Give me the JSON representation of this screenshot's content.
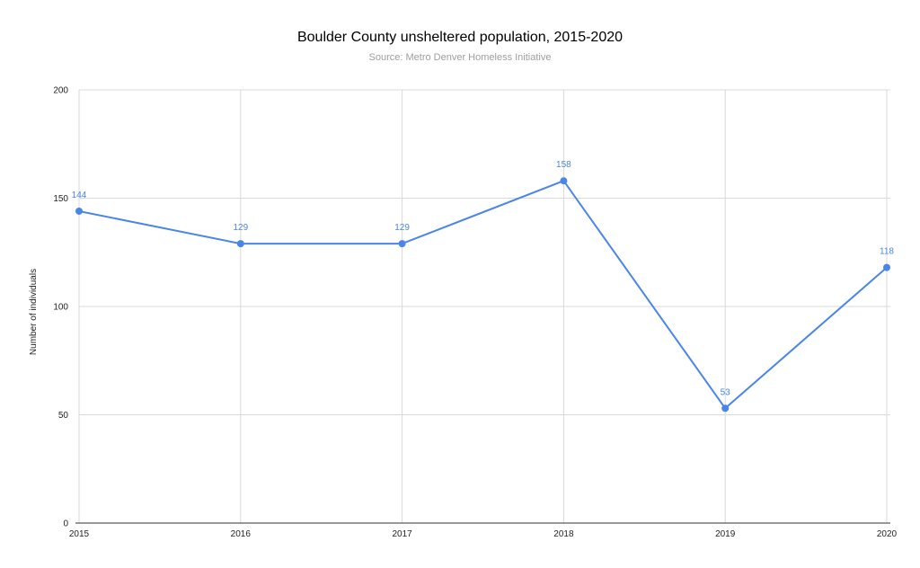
{
  "chart_data": {
    "type": "line",
    "title": "Boulder County unsheltered population, 2015-2020",
    "subtitle": "Source: Metro Denver Homeless Initiative",
    "xlabel": "",
    "ylabel": "Number of individuals",
    "categories": [
      "2015",
      "2016",
      "2017",
      "2018",
      "2019",
      "2020"
    ],
    "series": [
      {
        "values": [
          144,
          129,
          129,
          158,
          53,
          118
        ],
        "color": "#4a86e8"
      }
    ],
    "data_labels": [
      "144",
      "129",
      "129",
      "158",
      "53",
      "118"
    ],
    "ylim": [
      0,
      200
    ],
    "yticks": [
      0,
      50,
      100,
      150,
      200
    ],
    "grid": true,
    "legend": "none"
  }
}
